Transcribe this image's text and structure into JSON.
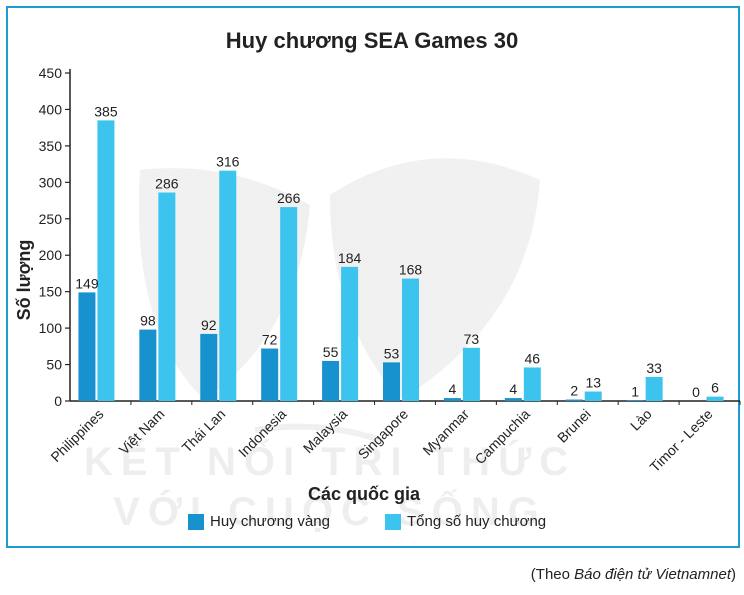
{
  "chart_data": {
    "type": "bar",
    "title": "Huy chương SEA Games 30",
    "xlabel": "Các quốc gia",
    "ylabel": "Số lượng",
    "ylim": [
      0,
      450
    ],
    "yticks": [
      0,
      50,
      100,
      150,
      200,
      250,
      300,
      350,
      400,
      450
    ],
    "categories": [
      "Philippines",
      "Việt Nam",
      "Thái Lan",
      "Indonesia",
      "Malaysia",
      "Singapore",
      "Myanmar",
      "Campuchia",
      "Brunei",
      "Lào",
      "Timor - Leste"
    ],
    "series": [
      {
        "name": "Huy chương vàng",
        "values": [
          149,
          98,
          92,
          72,
          55,
          53,
          4,
          4,
          2,
          1,
          0
        ],
        "color": "#1891cf"
      },
      {
        "name": "Tổng số huy chương",
        "values": [
          385,
          286,
          316,
          266,
          184,
          168,
          73,
          46,
          13,
          33,
          6
        ],
        "color": "#3cc3ee"
      }
    ],
    "legend_position": "bottom",
    "grid": false
  },
  "watermark": [
    "KẾT NỐI TRI THỨC",
    "VỚI CUỘC SỐNG"
  ],
  "source": {
    "prefix": "(Theo ",
    "italic": "Báo điện tử Vietnamnet",
    "suffix": ")"
  },
  "colors": {
    "frame": "#1f9bd1",
    "axis": "#222222"
  }
}
